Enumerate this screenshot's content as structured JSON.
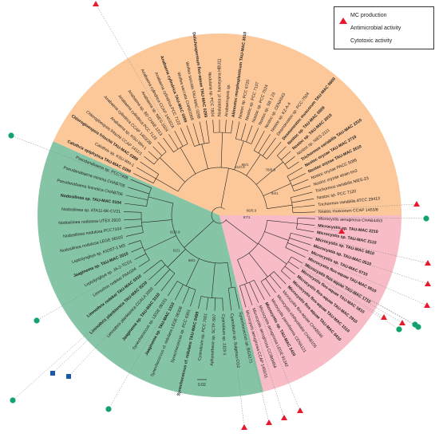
{
  "legend": {
    "items": [
      {
        "label": "MC production",
        "symbol": "triangle",
        "color": "#e8192c"
      },
      {
        "label": "Antimicrobial activity",
        "symbol": "circle",
        "color": "#12a36d"
      },
      {
        "label": "Cytotoxic activity",
        "symbol": "square",
        "color": "#1a5aa8"
      }
    ]
  },
  "scale_bar": {
    "label": "0.02"
  },
  "clades": [
    {
      "name": "orange",
      "color": "#fcc89a"
    },
    {
      "name": "green",
      "color": "#86c4a6"
    },
    {
      "name": "pink",
      "color": "#f7bcc6"
    }
  ],
  "bootstrap_labels": [
    "61/0.9",
    "86/1",
    "78/0.9",
    "94/1",
    "66/0.9",
    "87/1",
    "91/0.9",
    "62/1",
    "88/1"
  ],
  "leaves": [
    {
      "label": "Nostoc muscorum CCAP 1453/8",
      "bold": false,
      "clade": "orange"
    },
    {
      "label": "Trichormus variabilis ATCC 29413",
      "bold": false,
      "clade": "orange"
    },
    {
      "label": "Nostoc sp. PCC 7120",
      "bold": false,
      "clade": "orange"
    },
    {
      "label": "Trichormus variabilis NIES-23",
      "bold": false,
      "clade": "orange"
    },
    {
      "label": "Nostoc oryzae strain tm3",
      "bold": false,
      "clade": "orange"
    },
    {
      "label": "Nostoc oryzae PACC 5085",
      "bold": false,
      "clade": "orange"
    },
    {
      "label": "Nostoc oryzae TAU-MAC 2610",
      "bold": true,
      "clade": "orange"
    },
    {
      "label": "Nostoc oryzae TAU-MAC 2710",
      "bold": true,
      "clade": "orange"
    },
    {
      "label": "Trichormus variabilis TAU-MAC 2310",
      "bold": true,
      "clade": "orange"
    },
    {
      "label": "Nostoc sp. NIES-2111",
      "bold": false,
      "clade": "orange"
    },
    {
      "label": "Nostoc sp. TAU-MAC 3010",
      "bold": true,
      "clade": "orange"
    },
    {
      "label": "Nostoc sp. TAU-MAC 0609",
      "bold": true,
      "clade": "orange"
    },
    {
      "label": "Desmonostoc muscorum TAU-MAC 0609",
      "bold": true,
      "clade": "orange"
    },
    {
      "label": "Desmonostoc sp. PCC-7504",
      "bold": false,
      "clade": "orange"
    },
    {
      "label": "Nostoc sp. KZ-A-4",
      "bold": false,
      "clade": "orange"
    },
    {
      "label": "Nostoc sp. CENA543",
      "bold": false,
      "clade": "orange"
    },
    {
      "label": "Nostoc sp. SB 1 23",
      "bold": false,
      "clade": "orange"
    },
    {
      "label": "Nostoc sp. PCC 7524",
      "bold": false,
      "clade": "orange"
    },
    {
      "label": "Nostoc sp. PCC 7107",
      "bold": false,
      "clade": "orange"
    },
    {
      "label": "Nostoc sp. PCC 6720",
      "bold": false,
      "clade": "orange"
    },
    {
      "label": "Aliinostoc morphoplasticum TAU-MAC 3010",
      "bold": true,
      "clade": "orange"
    },
    {
      "label": "Anabaenopsis sp.",
      "bold": false,
      "clade": "orange"
    },
    {
      "label": "Nodularia cf. harveyana HBU11",
      "bold": false,
      "clade": "orange"
    },
    {
      "label": "Nodularia sp. PCC 7804",
      "bold": false,
      "clade": "orange"
    },
    {
      "label": "Dolichospermum flos-aquae TAU-MAC 0299",
      "bold": true,
      "clade": "orange"
    },
    {
      "label": "Wollea saccata TAU-MAC 0299",
      "bold": false,
      "clade": "orange"
    },
    {
      "label": "Wollea saccata CHAB1068",
      "bold": false,
      "clade": "orange"
    },
    {
      "label": "Anabaena cylindrica TAU-MAC 0399",
      "bold": true,
      "clade": "orange"
    },
    {
      "label": "Anabaena cylindrica PCC 7122",
      "bold": false,
      "clade": "orange"
    },
    {
      "label": "Anabaena cylindrica CCAP 1403/2A",
      "bold": false,
      "clade": "orange"
    },
    {
      "label": "Anabaena sp. NIES-2024",
      "bold": false,
      "clade": "orange"
    },
    {
      "label": "Anabaena sp. BD CHAB 1213",
      "bold": false,
      "clade": "orange"
    },
    {
      "label": "Anabaena cylindrica PCC 7123",
      "bold": false,
      "clade": "orange"
    },
    {
      "label": "Anabaena cylindrica CCAP 1403/2B",
      "bold": false,
      "clade": "orange"
    },
    {
      "label": "Anabaena sp. KSU-WH-1",
      "bold": false,
      "clade": "orange"
    },
    {
      "label": "Chlorogloeopsis fritschii CCAP 1411/1",
      "bold": false,
      "clade": "orange"
    },
    {
      "label": "Chlorogloeopsis fritschii TAU-MAC 0399",
      "bold": true,
      "clade": "orange"
    },
    {
      "label": "Calothrix sp. KSU-WH-1",
      "bold": false,
      "clade": "orange"
    },
    {
      "label": "Calothrix epiphytica TAU-MAC 0399",
      "bold": true,
      "clade": "orange"
    },
    {
      "label": "Pseudanabaena sp. PCC7408",
      "bold": false,
      "clade": "green"
    },
    {
      "label": "Pseudanabaena minima CHAB705",
      "bold": false,
      "clade": "green"
    },
    {
      "label": "Pseudanabaena limnetica CHAB706",
      "bold": false,
      "clade": "green"
    },
    {
      "label": "Nodosilinea sp. TAU-MAC 0104",
      "bold": true,
      "clade": "green"
    },
    {
      "label": "Nodosilinea sp. ATA11-6K-CV21",
      "bold": false,
      "clade": "green"
    },
    {
      "label": "Nodosilinea nodulosa UTEX 2910",
      "bold": false,
      "clade": "green"
    },
    {
      "label": "Nodosilinea nodulosa PCC7104",
      "bold": false,
      "clade": "green"
    },
    {
      "label": "Nodosilinea nodulosa LEGE 06102",
      "bold": false,
      "clade": "green"
    },
    {
      "label": "Leptolyngbya sp. KIOST-1 MS",
      "bold": false,
      "clade": "green"
    },
    {
      "label": "Jaaginema sp. TAU-MAC 2010",
      "bold": true,
      "clade": "green"
    },
    {
      "label": "Leptolyngbya sp. JA-2-TCD1",
      "bold": false,
      "clade": "green"
    },
    {
      "label": "Limnothrix redekei PAAG04",
      "bold": false,
      "clade": "green"
    },
    {
      "label": "Limnothrix redekei TAU-MAC 0310",
      "bold": true,
      "clade": "green"
    },
    {
      "label": "Limnothrix planktonica TAU-MAC 0210",
      "bold": true,
      "clade": "green"
    },
    {
      "label": "Limnothrix planktonica CCALA 1053",
      "bold": false,
      "clade": "green"
    },
    {
      "label": "Jaaginema sp. TAU-MAC 3110",
      "bold": true,
      "clade": "green"
    },
    {
      "label": "Synechococcus sp. LEGE 06151",
      "bold": false,
      "clade": "green"
    },
    {
      "label": "Jaaginema sp. TAU-MAC 1310",
      "bold": true,
      "clade": "green"
    },
    {
      "label": "Synechococcus cf. nidulans LEGE 06306",
      "bold": false,
      "clade": "green"
    },
    {
      "label": "Synechococcus sp. PCC 6301",
      "bold": false,
      "clade": "green"
    },
    {
      "label": "Synechococcus cf. nidulans TAU-MAC 0499",
      "bold": true,
      "clade": "green"
    },
    {
      "label": "Cyanobium sp. PCC 7001",
      "bold": false,
      "clade": "green"
    },
    {
      "label": "Aphanothece sp. SCTF-S07",
      "bold": false,
      "clade": "green"
    },
    {
      "label": "Cyanobium sp. JJ23-1",
      "bold": false,
      "clade": "green"
    },
    {
      "label": "Cyanobium sp. Suigetsu-CG2",
      "bold": false,
      "clade": "green"
    },
    {
      "label": "Synechococcus sp. BGS171",
      "bold": false,
      "clade": "green"
    },
    {
      "label": "Microcystis aeruginosa CCAP 1450/11",
      "bold": false,
      "clade": "pink"
    },
    {
      "label": "Microcystis aeruginosa CCIBt3454",
      "bold": false,
      "clade": "pink"
    },
    {
      "label": "Microcystis aeruginosa LEGE 91342",
      "bold": false,
      "clade": "pink"
    },
    {
      "label": "Microcystis sp. TAU-MAC 2410",
      "bold": true,
      "clade": "pink"
    },
    {
      "label": "Microcystis panniformis CENA121",
      "bold": false,
      "clade": "pink"
    },
    {
      "label": "Microcystis ichthyoblabe CHAB105",
      "bold": false,
      "clade": "pink"
    },
    {
      "label": "Microcystis flos-aquae CHAB546",
      "bold": false,
      "clade": "pink"
    },
    {
      "label": "Microcystis flos-aquae TAU-MAC 0410",
      "bold": true,
      "clade": "pink"
    },
    {
      "label": "Microcystis flos-aquae TAU-MAC 1510",
      "bold": true,
      "clade": "pink"
    },
    {
      "label": "Microcystis flos-aquae TAU-MAC 2910",
      "bold": true,
      "clade": "pink"
    },
    {
      "label": "Microcystis flos-aquae TAU-MAC 1810",
      "bold": true,
      "clade": "pink"
    },
    {
      "label": "Microcystis flos-aquae TAU-MAC 1710",
      "bold": true,
      "clade": "pink"
    },
    {
      "label": "Microcystis flos-aquae TAU-MAC 0610",
      "bold": true,
      "clade": "pink"
    },
    {
      "label": "Microcystis sp. TAU-MAC 0710",
      "bold": true,
      "clade": "pink"
    },
    {
      "label": "Microcystis sp. TAU-MAC 0510",
      "bold": true,
      "clade": "pink"
    },
    {
      "label": "Microcystis sp. TAU-MAC 0810",
      "bold": true,
      "clade": "pink"
    },
    {
      "label": "Microcystis sp. TAU-MAC 2110",
      "bold": true,
      "clade": "pink"
    },
    {
      "label": "Microcystis sp. TAU-MAC 2210",
      "bold": true,
      "clade": "pink"
    },
    {
      "label": "Microcystis aeruginosa CHAB4453",
      "bold": false,
      "clade": "pink"
    }
  ],
  "activity_markers": [
    {
      "symbol": "triangle",
      "color": "#e8192c"
    },
    {
      "symbol": "circle",
      "color": "#12a36d"
    },
    {
      "symbol": "circle",
      "color": "#12a36d"
    },
    {
      "symbol": "triangle",
      "color": "#e8192c"
    },
    {
      "symbol": "triangle",
      "color": "#e8192c"
    },
    {
      "symbol": "triangle",
      "color": "#e8192c"
    },
    {
      "symbol": "triangle",
      "color": "#e8192c"
    },
    {
      "symbol": "triangle",
      "color": "#e8192c"
    },
    {
      "symbol": "triangle",
      "color": "#e8192c"
    },
    {
      "symbol": "circle",
      "color": "#12a36d"
    },
    {
      "symbol": "circle",
      "color": "#12a36d"
    },
    {
      "symbol": "triangle",
      "color": "#e8192c"
    },
    {
      "symbol": "triangle",
      "color": "#e8192c"
    },
    {
      "symbol": "triangle",
      "color": "#e8192c"
    },
    {
      "symbol": "triangle",
      "color": "#e8192c"
    },
    {
      "symbol": "triangle",
      "color": "#e8192c"
    },
    {
      "symbol": "circle",
      "color": "#12a36d"
    },
    {
      "symbol": "circle",
      "color": "#12a36d"
    },
    {
      "symbol": "square",
      "color": "#1a5aa8"
    },
    {
      "symbol": "square",
      "color": "#1a5aa8"
    },
    {
      "symbol": "circle",
      "color": "#12a36d"
    },
    {
      "symbol": "circle",
      "color": "#12a36d"
    }
  ]
}
